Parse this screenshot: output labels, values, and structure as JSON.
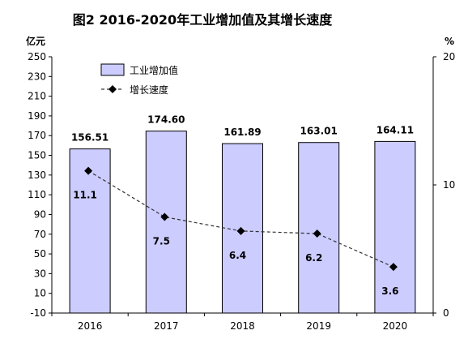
{
  "title": "图2   2016-2020年工业增加值及其增长速度",
  "left_unit": "亿元",
  "right_unit": "%",
  "legend": {
    "bar_label": "工业增加值",
    "line_label": "增长速度"
  },
  "colors": {
    "bar_fill": "#ccccff",
    "bar_stroke": "#000000",
    "line": "#333333",
    "marker": "#000000"
  },
  "chart_data": {
    "type": "bar",
    "categories": [
      "2016",
      "2017",
      "2018",
      "2019",
      "2020"
    ],
    "series": [
      {
        "name": "工业增加值",
        "type": "bar",
        "axis": "left",
        "values": [
          156.51,
          174.6,
          161.89,
          163.01,
          164.11
        ]
      },
      {
        "name": "增长速度",
        "type": "line",
        "axis": "right",
        "values": [
          11.1,
          7.5,
          6.4,
          6.2,
          3.6
        ],
        "style": "dashed",
        "marker": "diamond"
      }
    ],
    "y_left": {
      "unit": "亿元",
      "range": [
        -10,
        250
      ],
      "ticks": [
        -10,
        10,
        30,
        50,
        70,
        90,
        110,
        130,
        150,
        170,
        190,
        210,
        230,
        250
      ]
    },
    "y_right": {
      "unit": "%",
      "range": [
        0,
        20
      ],
      "ticks": [
        0,
        10,
        20
      ]
    },
    "bar_labels": [
      "156.51",
      "174.60",
      "161.89",
      "163.01",
      "164.11"
    ],
    "line_labels": [
      "11.1",
      "7.5",
      "6.4",
      "6.2",
      "3.6"
    ],
    "legend_position": "top-left",
    "grid": false
  }
}
